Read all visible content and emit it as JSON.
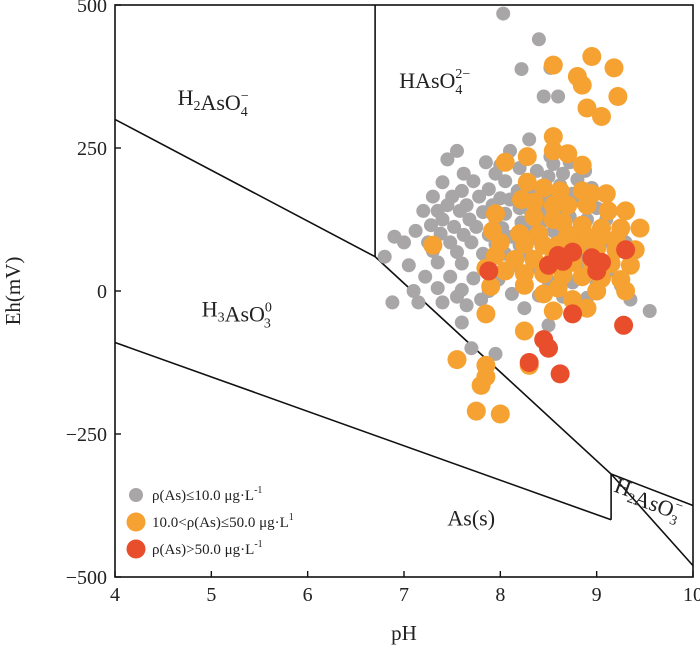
{
  "chart_data": {
    "type": "scatter",
    "xlabel": "pH",
    "ylabel": "Eh(mV)",
    "xlim": [
      4,
      10
    ],
    "ylim": [
      -500,
      500
    ],
    "x_ticks": [
      "4",
      "5",
      "6",
      "7",
      "8",
      "9",
      "10"
    ],
    "y_ticks": [
      "500",
      "250",
      "0",
      "−250",
      "−500"
    ],
    "y_tick_values": [
      500,
      250,
      0,
      -250,
      -500
    ],
    "boundaries": [
      {
        "points": [
          [
            4,
            300
          ],
          [
            6.7,
            60
          ],
          [
            9.15,
            -320
          ],
          [
            10,
            -480
          ]
        ]
      },
      {
        "points": [
          [
            4,
            -90
          ],
          [
            9.15,
            -400
          ]
        ]
      },
      {
        "points": [
          [
            6.7,
            60
          ],
          [
            6.7,
            500
          ]
        ]
      },
      {
        "points": [
          [
            9.15,
            -320
          ],
          [
            10,
            -375
          ]
        ]
      },
      {
        "points": [
          [
            9.15,
            -320
          ],
          [
            9.15,
            -400
          ]
        ]
      }
    ],
    "regions": [
      {
        "base": "H",
        "sub1": "2",
        "mid": "AsO",
        "sub2": "4",
        "sup": "−",
        "x": 4.65,
        "y": 325
      },
      {
        "base": "H",
        "sub1": "",
        "mid": "AsO",
        "sub2": "4",
        "sup": "2−",
        "x": 6.95,
        "y": 355
      },
      {
        "base": "H",
        "sub1": "3",
        "mid": "AsO",
        "sub2": "3",
        "sup": "0",
        "x": 4.9,
        "y": -45
      },
      {
        "base": "As(s)",
        "sub1": "",
        "mid": "",
        "sub2": "",
        "sup": "",
        "x": 7.45,
        "y": -410
      },
      {
        "base": "H",
        "sub1": "2",
        "mid": "AsO",
        "sub2": "3",
        "sup": "−",
        "x": 9.17,
        "y": -350,
        "rotate": 20
      }
    ],
    "series": [
      {
        "name": "ρ(As)≤10.0 μg·L",
        "name_sup": "-1",
        "color": "#a8a6a6",
        "points": [
          [
            8.03,
            485
          ],
          [
            8.4,
            440
          ],
          [
            8.22,
            388
          ],
          [
            8.52,
            390
          ],
          [
            8.45,
            340
          ],
          [
            8.6,
            340
          ],
          [
            8.3,
            265
          ],
          [
            8.52,
            235
          ],
          [
            8.1,
            245
          ],
          [
            7.55,
            245
          ],
          [
            7.85,
            225
          ],
          [
            8.0,
            220
          ],
          [
            8.2,
            215
          ],
          [
            7.45,
            230
          ],
          [
            8.38,
            210
          ],
          [
            8.55,
            222
          ],
          [
            8.72,
            225
          ],
          [
            8.88,
            210
          ],
          [
            7.62,
            205
          ],
          [
            7.95,
            205
          ],
          [
            8.5,
            200
          ],
          [
            8.65,
            205
          ],
          [
            8.8,
            195
          ],
          [
            7.4,
            190
          ],
          [
            7.72,
            192
          ],
          [
            8.05,
            192
          ],
          [
            8.3,
            190
          ],
          [
            8.45,
            185
          ],
          [
            8.62,
            185
          ],
          [
            8.95,
            180
          ],
          [
            7.6,
            175
          ],
          [
            7.88,
            178
          ],
          [
            8.18,
            175
          ],
          [
            8.35,
            175
          ],
          [
            8.55,
            170
          ],
          [
            8.75,
            170
          ],
          [
            7.3,
            165
          ],
          [
            7.5,
            165
          ],
          [
            7.78,
            165
          ],
          [
            8.0,
            162
          ],
          [
            8.1,
            160
          ],
          [
            8.28,
            160
          ],
          [
            8.45,
            158
          ],
          [
            8.68,
            158
          ],
          [
            8.85,
            155
          ],
          [
            7.45,
            150
          ],
          [
            7.65,
            150
          ],
          [
            7.92,
            150
          ],
          [
            8.2,
            145
          ],
          [
            8.4,
            145
          ],
          [
            8.6,
            145
          ],
          [
            9.0,
            145
          ],
          [
            7.2,
            140
          ],
          [
            7.35,
            140
          ],
          [
            7.58,
            140
          ],
          [
            7.82,
            138
          ],
          [
            8.05,
            135
          ],
          [
            8.32,
            135
          ],
          [
            8.5,
            130
          ],
          [
            8.72,
            130
          ],
          [
            8.9,
            125
          ],
          [
            9.1,
            125
          ],
          [
            7.4,
            125
          ],
          [
            7.68,
            125
          ],
          [
            7.95,
            125
          ],
          [
            8.22,
            120
          ],
          [
            8.42,
            118
          ],
          [
            8.62,
            118
          ],
          [
            7.28,
            115
          ],
          [
            7.52,
            112
          ],
          [
            7.75,
            112
          ],
          [
            8.02,
            110
          ],
          [
            8.3,
            108
          ],
          [
            8.55,
            105
          ],
          [
            8.8,
            105
          ],
          [
            9.05,
            105
          ],
          [
            9.25,
            100
          ],
          [
            7.12,
            105
          ],
          [
            7.38,
            100
          ],
          [
            7.62,
            98
          ],
          [
            7.88,
            98
          ],
          [
            8.12,
            95
          ],
          [
            8.38,
            92
          ],
          [
            8.6,
            92
          ],
          [
            8.85,
            88
          ],
          [
            9.1,
            88
          ],
          [
            9.3,
            85
          ],
          [
            6.9,
            95
          ],
          [
            7.0,
            85
          ],
          [
            7.25,
            85
          ],
          [
            7.48,
            85
          ],
          [
            7.7,
            85
          ],
          [
            7.95,
            82
          ],
          [
            8.2,
            80
          ],
          [
            8.45,
            78
          ],
          [
            8.68,
            75
          ],
          [
            8.92,
            75
          ],
          [
            9.18,
            72
          ],
          [
            7.3,
            70
          ],
          [
            7.55,
            68
          ],
          [
            7.82,
            65
          ],
          [
            8.05,
            65
          ],
          [
            8.3,
            62
          ],
          [
            8.55,
            60
          ],
          [
            8.8,
            58
          ],
          [
            9.05,
            55
          ],
          [
            6.8,
            60
          ],
          [
            7.05,
            45
          ],
          [
            7.35,
            50
          ],
          [
            7.6,
            48
          ],
          [
            7.85,
            45
          ],
          [
            8.1,
            42
          ],
          [
            8.35,
            42
          ],
          [
            8.6,
            40
          ],
          [
            8.88,
            38
          ],
          [
            9.12,
            35
          ],
          [
            7.22,
            25
          ],
          [
            7.48,
            25
          ],
          [
            7.72,
            22
          ],
          [
            7.98,
            20
          ],
          [
            8.25,
            20
          ],
          [
            8.5,
            18
          ],
          [
            8.75,
            15
          ],
          [
            9.0,
            12
          ],
          [
            9.25,
            10
          ],
          [
            7.1,
            0
          ],
          [
            7.35,
            5
          ],
          [
            7.6,
            2
          ],
          [
            7.88,
            0
          ],
          [
            8.12,
            -5
          ],
          [
            8.4,
            -8
          ],
          [
            8.65,
            -10
          ],
          [
            8.9,
            -12
          ],
          [
            7.4,
            -20
          ],
          [
            7.65,
            -25
          ],
          [
            6.88,
            -20
          ],
          [
            7.6,
            -55
          ],
          [
            7.7,
            -100
          ],
          [
            7.95,
            -110
          ],
          [
            8.5,
            -60
          ],
          [
            9.55,
            -35
          ],
          [
            9.35,
            -15
          ],
          [
            7.55,
            -10
          ],
          [
            7.8,
            -15
          ],
          [
            8.25,
            -30
          ],
          [
            7.15,
            -20
          ]
        ]
      },
      {
        "name": "10.0<ρ(As)≤50.0 μg·L",
        "name_sup": "1",
        "color": "#f6a232",
        "points": [
          [
            8.95,
            410
          ],
          [
            9.18,
            390
          ],
          [
            8.55,
            395
          ],
          [
            8.8,
            375
          ],
          [
            8.85,
            360
          ],
          [
            9.22,
            340
          ],
          [
            8.9,
            320
          ],
          [
            9.05,
            305
          ],
          [
            8.55,
            270
          ],
          [
            8.55,
            245
          ],
          [
            8.7,
            240
          ],
          [
            8.28,
            235
          ],
          [
            8.05,
            225
          ],
          [
            8.85,
            220
          ],
          [
            8.28,
            190
          ],
          [
            8.45,
            180
          ],
          [
            8.62,
            175
          ],
          [
            8.85,
            175
          ],
          [
            8.95,
            170
          ],
          [
            9.1,
            170
          ],
          [
            8.22,
            160
          ],
          [
            8.35,
            155
          ],
          [
            8.55,
            150
          ],
          [
            8.7,
            150
          ],
          [
            8.9,
            150
          ],
          [
            9.12,
            140
          ],
          [
            9.3,
            140
          ],
          [
            7.95,
            135
          ],
          [
            8.35,
            130
          ],
          [
            8.55,
            125
          ],
          [
            8.65,
            120
          ],
          [
            8.85,
            115
          ],
          [
            9.05,
            110
          ],
          [
            9.25,
            110
          ],
          [
            9.45,
            110
          ],
          [
            7.92,
            105
          ],
          [
            8.2,
            100
          ],
          [
            8.4,
            100
          ],
          [
            8.7,
            98
          ],
          [
            8.9,
            95
          ],
          [
            9.05,
            95
          ],
          [
            9.2,
            90
          ],
          [
            7.3,
            80
          ],
          [
            8.0,
            85
          ],
          [
            8.25,
            82
          ],
          [
            8.45,
            80
          ],
          [
            8.6,
            80
          ],
          [
            8.8,
            78
          ],
          [
            9.0,
            75
          ],
          [
            9.2,
            72
          ],
          [
            9.4,
            72
          ],
          [
            7.95,
            62
          ],
          [
            8.15,
            55
          ],
          [
            8.35,
            55
          ],
          [
            8.55,
            55
          ],
          [
            8.75,
            50
          ],
          [
            8.95,
            50
          ],
          [
            9.15,
            48
          ],
          [
            9.35,
            45
          ],
          [
            7.85,
            40
          ],
          [
            8.05,
            35
          ],
          [
            8.25,
            30
          ],
          [
            8.45,
            30
          ],
          [
            8.65,
            28
          ],
          [
            8.85,
            25
          ],
          [
            9.05,
            22
          ],
          [
            9.25,
            20
          ],
          [
            7.9,
            8
          ],
          [
            8.25,
            10
          ],
          [
            8.6,
            5
          ],
          [
            9.0,
            0
          ],
          [
            9.3,
            0
          ],
          [
            8.45,
            -5
          ],
          [
            8.75,
            -15
          ],
          [
            8.9,
            -30
          ],
          [
            8.55,
            -35
          ],
          [
            7.85,
            -40
          ],
          [
            8.25,
            -70
          ],
          [
            7.55,
            -120
          ],
          [
            7.85,
            -130
          ],
          [
            8.3,
            -130
          ],
          [
            7.8,
            -165
          ],
          [
            7.85,
            -150
          ],
          [
            7.75,
            -210
          ],
          [
            8.0,
            -215
          ]
        ]
      },
      {
        "name": "ρ(As)>50.0 μg·L",
        "name_sup": "-1",
        "color": "#e84e2c",
        "points": [
          [
            9.3,
            72
          ],
          [
            8.6,
            62
          ],
          [
            8.75,
            68
          ],
          [
            8.95,
            58
          ],
          [
            9.05,
            50
          ],
          [
            8.65,
            52
          ],
          [
            8.5,
            45
          ],
          [
            9.0,
            35
          ],
          [
            7.88,
            35
          ],
          [
            8.45,
            -85
          ],
          [
            8.5,
            -100
          ],
          [
            8.62,
            -145
          ],
          [
            8.3,
            -125
          ],
          [
            8.75,
            -40
          ],
          [
            9.28,
            -60
          ]
        ]
      }
    ]
  }
}
